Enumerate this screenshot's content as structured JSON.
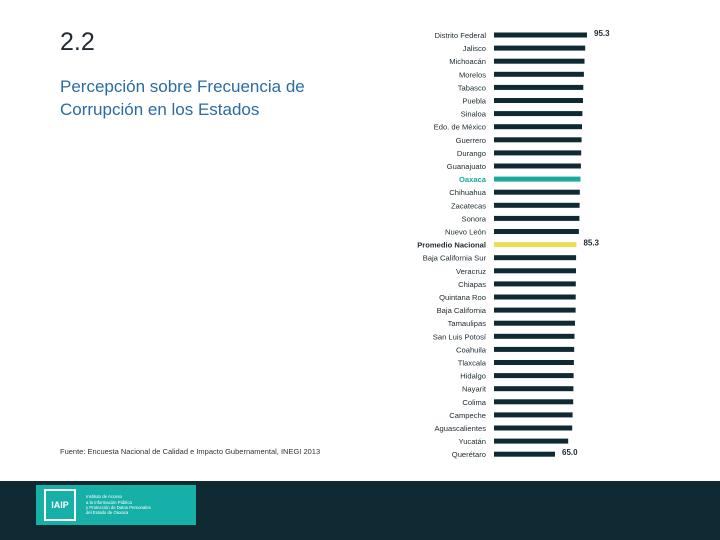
{
  "slide": {
    "number": "2.2",
    "title": "Percepción sobre Frecuencia de Corrupción en los Estados",
    "source": "Fuente: Encuesta Nacional de Calidad e Impacto Gubernamental, INEGI 2013"
  },
  "footer": {
    "logo_text": "IAIP",
    "logo_lines": [
      "Instituto de Acceso",
      "a la Información Pública",
      "y Protección de Datos Personales",
      "del Estado de Oaxaca"
    ]
  },
  "colors": {
    "bar": "#0f2a33",
    "highlight": "#1aa99c",
    "average": "#e6e05a",
    "accent_text": "#1aa99c"
  },
  "chart_data": {
    "type": "bar",
    "orientation": "horizontal",
    "title": "",
    "xlim": [
      0,
      100
    ],
    "categories": [
      "Distrito Federal",
      "Jalisco",
      "Michoacán",
      "Morelos",
      "Tabasco",
      "Puebla",
      "Sinaloa",
      "Edo. de México",
      "Guerrero",
      "Durango",
      "Guanajuato",
      "Oaxaca",
      "Chihuahua",
      "Zacatecas",
      "Sonora",
      "Nuevo León",
      "Promedio Nacional",
      "Baja California Sur",
      "Veracruz",
      "Chiapas",
      "Quintana Roo",
      "Baja California",
      "Tamaulipas",
      "San Luis Potosí",
      "Coahuila",
      "Tlaxcala",
      "Hidalgo",
      "Nayarit",
      "Colima",
      "Campeche",
      "Aguascalientes",
      "Yucatán",
      "Querétaro"
    ],
    "values": [
      95.3,
      93.6,
      92.9,
      92.4,
      91.8,
      91.5,
      90.9,
      90.6,
      90.2,
      89.8,
      89.5,
      89.1,
      88.5,
      88.3,
      88.1,
      87.6,
      85.3,
      85.0,
      84.9,
      84.7,
      84.6,
      84.5,
      83.9,
      83.5,
      83.2,
      82.9,
      82.6,
      82.4,
      82.2,
      81.7,
      81.3,
      77.5,
      65.0
    ],
    "value_labels": [
      {
        "index": 0,
        "text": "95.3"
      },
      {
        "index": 16,
        "text": "85.3"
      },
      {
        "index": 32,
        "text": "65.0"
      }
    ],
    "highlight_index": 11,
    "average_index": 16
  }
}
